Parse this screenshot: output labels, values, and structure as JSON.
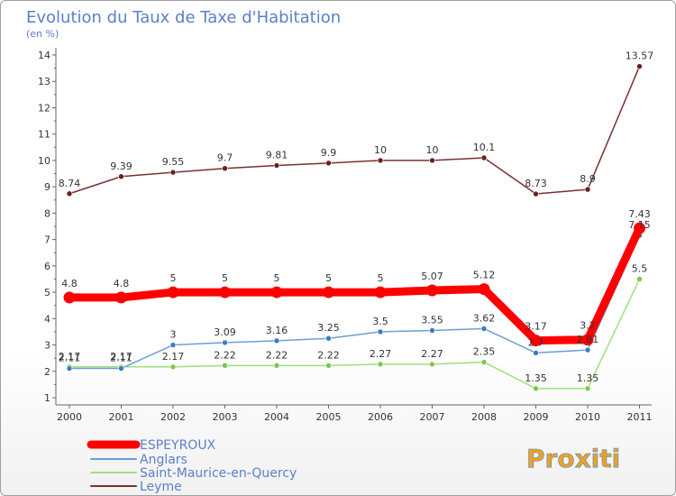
{
  "chart_data": {
    "type": "line",
    "title": "Evolution du Taux de Taxe d'Habitation",
    "subtitle": "(en %)",
    "xlabel": "",
    "ylabel": "",
    "categories": [
      "2000",
      "2001",
      "2002",
      "2003",
      "2004",
      "2005",
      "2006",
      "2007",
      "2008",
      "2009",
      "2010",
      "2011"
    ],
    "ylim": [
      1,
      14
    ],
    "yticks": [
      1,
      2,
      3,
      4,
      5,
      6,
      7,
      8,
      9,
      10,
      11,
      12,
      13,
      14
    ],
    "grid": false,
    "legend_position": "bottom-left",
    "series": [
      {
        "name": "ESPEYROUX",
        "color": "#ff0000",
        "values": [
          4.8,
          4.8,
          5,
          5,
          5,
          5,
          5,
          5.07,
          5.12,
          3.17,
          3.2,
          7.43
        ],
        "labels": [
          "4.8",
          "4.8",
          "5",
          "5",
          "5",
          "5",
          "5",
          "5.07",
          "5.12",
          "3.17",
          "3.2",
          "7.43"
        ]
      },
      {
        "name": "Anglars",
        "color": "#6a9fd6",
        "marker": "#3a7cc0",
        "values": [
          2.11,
          2.11,
          3,
          3.09,
          3.16,
          3.25,
          3.5,
          3.55,
          3.62,
          2.7,
          2.81,
          7.15
        ],
        "labels": [
          "2.11",
          "2.11",
          "3",
          "3.09",
          "3.16",
          "3.25",
          "3.5",
          "3.55",
          "3.62",
          "2.7",
          "2.81",
          "7.15"
        ]
      },
      {
        "name": "Saint-Maurice-en-Quercy",
        "color": "#9ee07a",
        "marker": "#7cc84e",
        "values": [
          2.17,
          2.17,
          2.17,
          2.22,
          2.22,
          2.22,
          2.27,
          2.27,
          2.35,
          1.35,
          1.35,
          5.5
        ],
        "labels": [
          "2.17",
          "2.17",
          "2.17",
          "2.22",
          "2.22",
          "2.22",
          "2.27",
          "2.27",
          "2.35",
          "1.35",
          "1.35",
          "5.5"
        ]
      },
      {
        "name": "Leyme",
        "color": "#7a3030",
        "marker": "#6e1e1e",
        "values": [
          8.74,
          9.39,
          9.55,
          9.7,
          9.81,
          9.9,
          10,
          10,
          10.1,
          8.73,
          8.9,
          13.57
        ],
        "labels": [
          "8.74",
          "9.39",
          "9.55",
          "9.7",
          "9.81",
          "9.9",
          "10",
          "10",
          "10.1",
          "8.73",
          "8.9",
          "13.57"
        ]
      }
    ]
  },
  "logo": {
    "text": "Proxiti"
  }
}
